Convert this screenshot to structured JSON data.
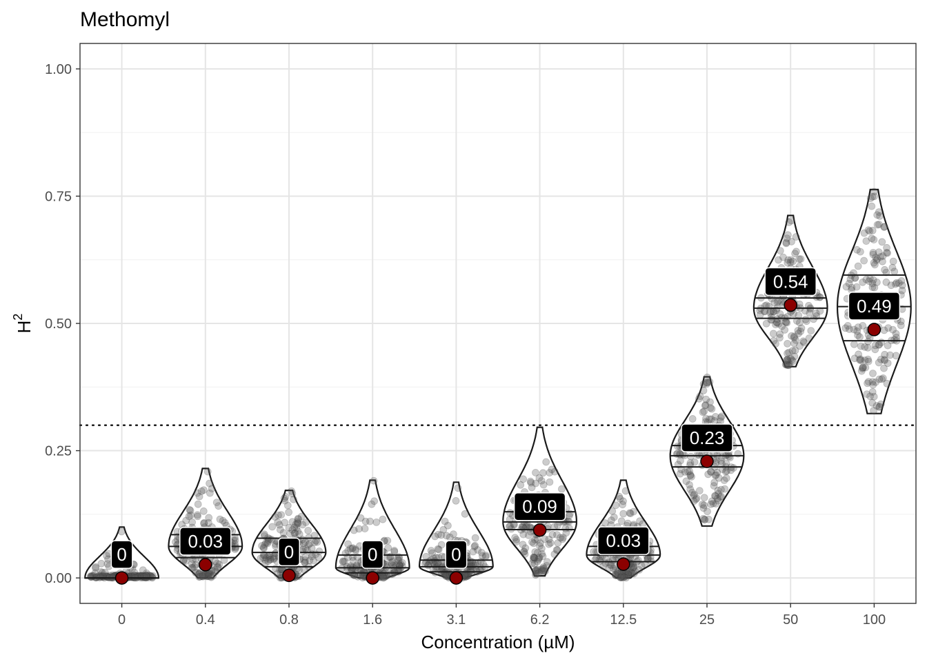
{
  "chart_data": {
    "type": "violin",
    "title": "Methomyl",
    "xlabel": "Concentration (µM)",
    "ylabel": "H",
    "ylabel_superscript": "2",
    "ylim": [
      -0.05,
      1.05
    ],
    "y_ticks": [
      "0.00",
      "0.25",
      "0.50",
      "0.75",
      "1.00"
    ],
    "y_tick_values": [
      0,
      0.25,
      0.5,
      0.75,
      1.0
    ],
    "grid": true,
    "threshold_line": 0.3,
    "categories": [
      "0",
      "0.4",
      "0.8",
      "1.6",
      "3.1",
      "6.2",
      "12.5",
      "25",
      "50",
      "100"
    ],
    "groups": [
      {
        "x": "0",
        "mean": 0.0,
        "label": "0",
        "min": 0.0,
        "max": 0.1,
        "quartiles": [
          0.0,
          0.0,
          0.0
        ]
      },
      {
        "x": "0.4",
        "mean": 0.026,
        "label": "0.03",
        "min": 0.0,
        "max": 0.215,
        "quartiles": [
          0.04,
          0.062,
          0.085
        ]
      },
      {
        "x": "0.8",
        "mean": 0.005,
        "label": "0",
        "min": 0.0,
        "max": 0.172,
        "quartiles": [
          0.022,
          0.05,
          0.078
        ]
      },
      {
        "x": "1.6",
        "mean": 0.0,
        "label": "0",
        "min": 0.0,
        "max": 0.192,
        "quartiles": [
          0.01,
          0.02,
          0.045
        ]
      },
      {
        "x": "3.1",
        "mean": 0.0,
        "label": "0",
        "min": 0.0,
        "max": 0.188,
        "quartiles": [
          0.012,
          0.022,
          0.035
        ]
      },
      {
        "x": "6.2",
        "mean": 0.094,
        "label": "0.09",
        "min": 0.004,
        "max": 0.296,
        "quartiles": [
          0.095,
          0.11,
          0.13
        ]
      },
      {
        "x": "12.5",
        "mean": 0.027,
        "label": "0.03",
        "min": 0.0,
        "max": 0.192,
        "quartiles": [
          0.032,
          0.045,
          0.062
        ]
      },
      {
        "x": "25",
        "mean": 0.229,
        "label": "0.23",
        "min": 0.102,
        "max": 0.395,
        "quartiles": [
          0.218,
          0.24,
          0.26
        ]
      },
      {
        "x": "50",
        "mean": 0.536,
        "label": "0.54",
        "min": 0.415,
        "max": 0.712,
        "quartiles": [
          0.51,
          0.53,
          0.55
        ]
      },
      {
        "x": "100",
        "mean": 0.488,
        "label": "0.49",
        "min": 0.323,
        "max": 0.763,
        "quartiles": [
          0.466,
          0.533,
          0.595
        ]
      }
    ],
    "colors": {
      "mean_point": "#8b0000",
      "violin_stroke": "#1a1a1a",
      "points": "#555555",
      "label_bg": "#000000",
      "label_text": "#ffffff",
      "grid": "#e5e5e5"
    }
  }
}
